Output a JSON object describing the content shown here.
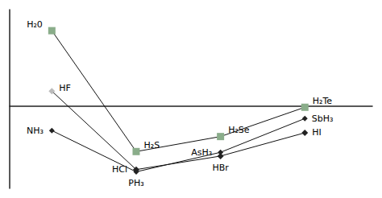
{
  "chart_data": {
    "type": "line",
    "xlim": [
      1.5,
      5.8
    ],
    "ylim": [
      -110,
      128
    ],
    "grid": false,
    "tick_labels": false,
    "series": [
      {
        "x": [
          2,
          3,
          4,
          5
        ],
        "values": [
          100,
          -61,
          -41,
          -2
        ],
        "color": "#111111",
        "marker": "square",
        "colors": [
          "#8aad8a",
          "#8aad8a",
          "#8aad8a",
          "#8aad8a"
        ]
      },
      {
        "x": [
          2,
          3,
          4,
          5
        ],
        "values": [
          19.5,
          -85,
          -67,
          -36
        ],
        "color": "#111111",
        "marker": "diamond",
        "colors": [
          "#bbbbbb",
          "#222222",
          "#222222",
          "#222222"
        ]
      },
      {
        "x": [
          2,
          3,
          4,
          5
        ],
        "values": [
          -33,
          -88,
          -62,
          -17
        ],
        "color": "#111111",
        "marker": "diamond",
        "colors": [
          "#222222",
          "#222222",
          "#222222",
          "#222222"
        ]
      }
    ],
    "annotations": [
      {
        "text": "H₂0",
        "x": 2,
        "y": 100
      },
      {
        "text": "H₂S",
        "x": 3,
        "y": -61
      },
      {
        "text": "H₂Se",
        "x": 4,
        "y": -41
      },
      {
        "text": "H₂Te",
        "x": 5,
        "y": -2
      },
      {
        "text": "HF",
        "x": 2,
        "y": 19.5
      },
      {
        "text": "HCl",
        "x": 3,
        "y": -85
      },
      {
        "text": "HBr",
        "x": 4,
        "y": -67
      },
      {
        "text": "HI",
        "x": 5,
        "y": -36
      },
      {
        "text": "NH₃",
        "x": 2,
        "y": -33
      },
      {
        "text": "PH₃",
        "x": 3,
        "y": -88
      },
      {
        "text": "AsH₃",
        "x": 4,
        "y": -62
      },
      {
        "text": "SbH₃",
        "x": 5,
        "y": -17
      }
    ]
  }
}
